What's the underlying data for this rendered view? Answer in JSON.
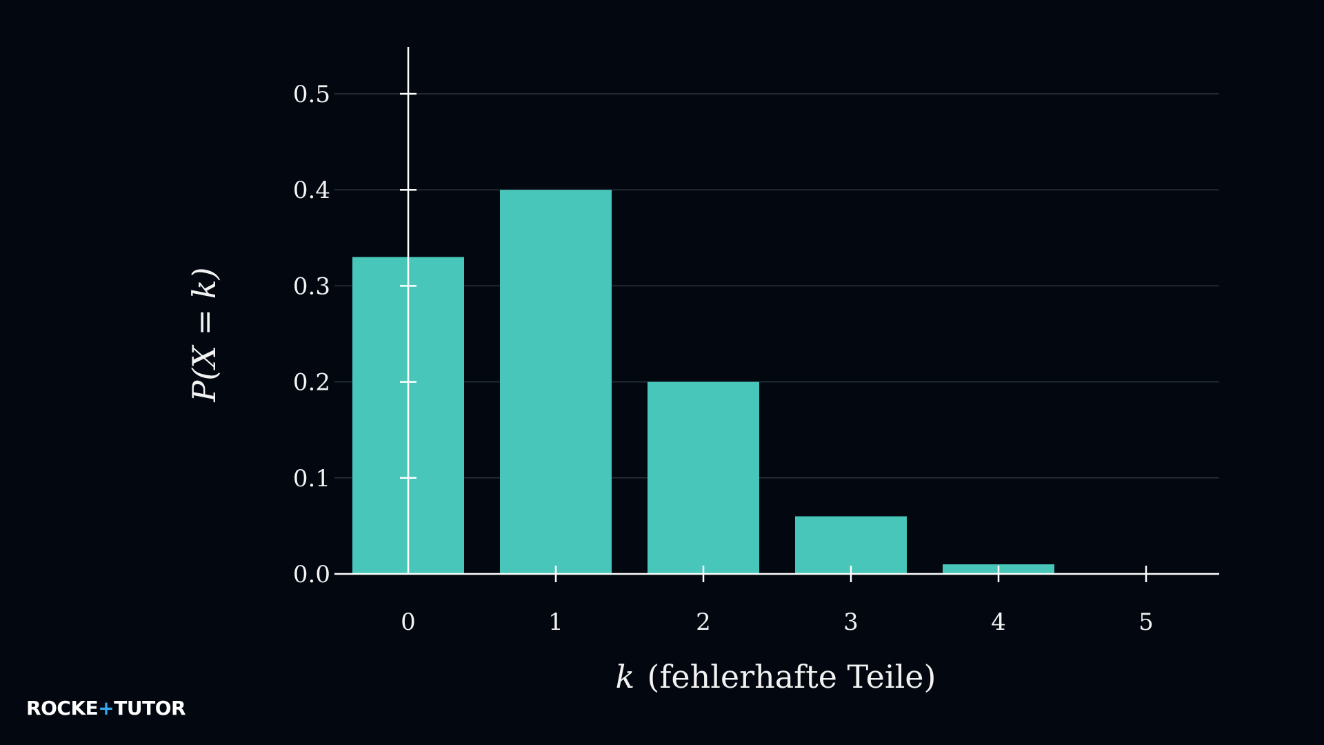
{
  "brand": {
    "logo_text": "ROCKE+TUTOR",
    "accent_color": "#35a9f0"
  },
  "chart_data": {
    "type": "bar",
    "categories": [
      "0",
      "1",
      "2",
      "3",
      "4",
      "5"
    ],
    "x": [
      0,
      1,
      2,
      3,
      4,
      5
    ],
    "values": [
      0.33,
      0.4,
      0.2,
      0.06,
      0.01,
      0.0
    ],
    "xlabel_math": "k",
    "xlabel_text": "(fehlerhafte Teile)",
    "ylabel": "P(X = k)",
    "ylim": [
      0,
      0.55
    ],
    "yticks": [
      "0.0",
      "0.1",
      "0.2",
      "0.3",
      "0.4",
      "0.5"
    ],
    "ytick_values": [
      0,
      0.1,
      0.2,
      0.3,
      0.4,
      0.5
    ],
    "grid": true,
    "bar_color": "#48c6ba",
    "background": "#030810",
    "axis_color": "#ffffff",
    "grid_color": "#2a343d"
  }
}
